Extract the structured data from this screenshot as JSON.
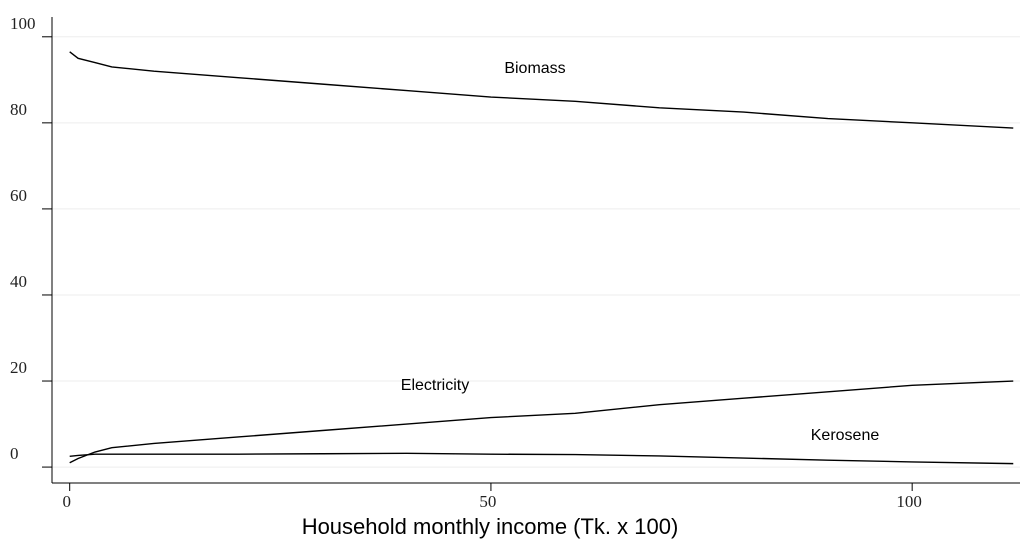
{
  "chart_data": {
    "type": "line",
    "x_label": "Household monthly income (Tk. x 100)",
    "x": [
      0,
      1,
      3,
      5,
      10,
      20,
      30,
      40,
      50,
      60,
      70,
      80,
      90,
      100,
      112
    ],
    "series": [
      {
        "name": "Biomass",
        "color": "#000000",
        "values": [
          96.5,
          95,
          94,
          93,
          92,
          90.5,
          89,
          87.5,
          86,
          85,
          83.5,
          82.5,
          81,
          80,
          78.8
        ]
      },
      {
        "name": "Electricity",
        "color": "#000000",
        "values": [
          1,
          2,
          3.5,
          4.5,
          5.5,
          7,
          8.5,
          10,
          11.5,
          12.5,
          14.5,
          16,
          17.5,
          19,
          20
        ]
      },
      {
        "name": "Kerosene",
        "color": "#000000",
        "values": [
          2.5,
          2.7,
          3,
          3,
          3,
          3,
          3.1,
          3.2,
          3,
          2.9,
          2.6,
          2.1,
          1.6,
          1.2,
          0.8
        ]
      }
    ],
    "xlim": [
      -2.1,
      112.8
    ],
    "xticks": [
      0,
      50,
      100
    ],
    "ylim": [
      -3.7,
      104.6
    ],
    "yticks": [
      0,
      20,
      40,
      60,
      80,
      100
    ],
    "grid": true
  }
}
